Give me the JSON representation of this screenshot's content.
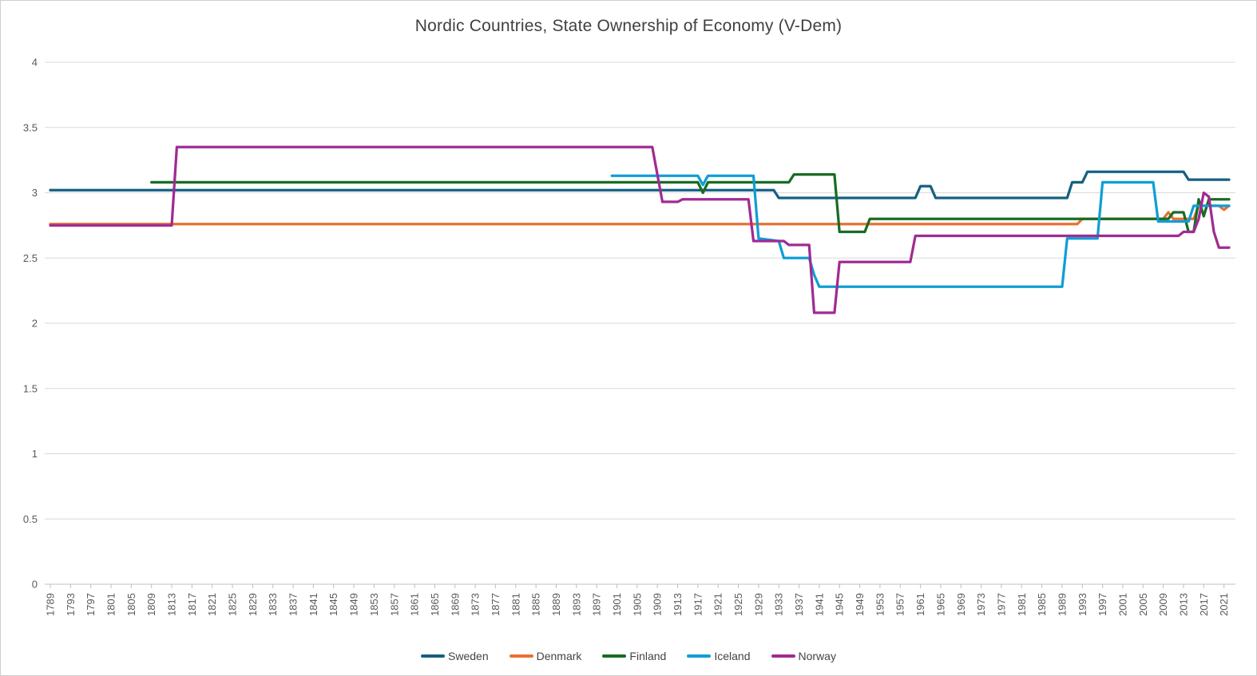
{
  "title": "Nordic Countries, State Ownership of Economy (V-Dem)",
  "chart_data": {
    "type": "line",
    "title": "Nordic Countries, State Ownership of Economy (V-Dem)",
    "xlabel": "",
    "ylabel": "",
    "grid": "horizontal",
    "legend_position": "bottom",
    "x_axis": {
      "range": [
        1789,
        2022
      ],
      "ticks": [
        1789,
        1793,
        1797,
        1801,
        1805,
        1809,
        1813,
        1817,
        1821,
        1825,
        1829,
        1833,
        1837,
        1841,
        1845,
        1849,
        1853,
        1857,
        1861,
        1865,
        1869,
        1873,
        1877,
        1881,
        1885,
        1889,
        1893,
        1897,
        1901,
        1905,
        1909,
        1913,
        1917,
        1921,
        1925,
        1929,
        1933,
        1937,
        1941,
        1945,
        1949,
        1953,
        1957,
        1961,
        1965,
        1969,
        1973,
        1977,
        1981,
        1985,
        1989,
        1993,
        1997,
        2001,
        2005,
        2009,
        2013,
        2017,
        2021
      ]
    },
    "y_axis": {
      "range": [
        0,
        4
      ],
      "ticks": [
        0,
        0.5,
        1,
        1.5,
        2,
        2.5,
        3,
        3.5,
        4
      ],
      "tick_labels": [
        "0",
        "0.5",
        "1",
        "1.5",
        "2",
        "2.5",
        "3",
        "3.5",
        "4"
      ]
    },
    "series": [
      {
        "name": "Sweden",
        "color": "#156082",
        "points": [
          [
            1789,
            3.02
          ],
          [
            1932,
            3.02
          ],
          [
            1933,
            2.96
          ],
          [
            1960,
            2.96
          ],
          [
            1961,
            3.05
          ],
          [
            1963,
            3.05
          ],
          [
            1964,
            2.96
          ],
          [
            1990,
            2.96
          ],
          [
            1991,
            3.08
          ],
          [
            1993,
            3.08
          ],
          [
            1994,
            3.16
          ],
          [
            2013,
            3.16
          ],
          [
            2014,
            3.1
          ],
          [
            2022,
            3.1
          ]
        ]
      },
      {
        "name": "Denmark",
        "color": "#E97132",
        "points": [
          [
            1789,
            2.76
          ],
          [
            1992,
            2.76
          ],
          [
            1993,
            2.8
          ],
          [
            2009,
            2.8
          ],
          [
            2010,
            2.85
          ],
          [
            2011,
            2.8
          ],
          [
            2015,
            2.8
          ],
          [
            2016,
            2.9
          ],
          [
            2020,
            2.9
          ],
          [
            2021,
            2.87
          ],
          [
            2022,
            2.9
          ]
        ]
      },
      {
        "name": "Finland",
        "color": "#196B24",
        "points": [
          [
            1809,
            3.08
          ],
          [
            1917,
            3.08
          ],
          [
            1918,
            3.0
          ],
          [
            1919,
            3.08
          ],
          [
            1935,
            3.08
          ],
          [
            1936,
            3.14
          ],
          [
            1944,
            3.14
          ],
          [
            1945,
            2.7
          ],
          [
            1950,
            2.7
          ],
          [
            1951,
            2.8
          ],
          [
            2010,
            2.8
          ],
          [
            2011,
            2.85
          ],
          [
            2013,
            2.85
          ],
          [
            2014,
            2.7
          ],
          [
            2015,
            2.7
          ],
          [
            2016,
            2.95
          ],
          [
            2017,
            2.82
          ],
          [
            2018,
            2.95
          ],
          [
            2022,
            2.95
          ]
        ]
      },
      {
        "name": "Iceland",
        "color": "#0F9ED5",
        "points": [
          [
            1900,
            3.13
          ],
          [
            1917,
            3.13
          ],
          [
            1918,
            3.06
          ],
          [
            1919,
            3.13
          ],
          [
            1928,
            3.13
          ],
          [
            1929,
            2.65
          ],
          [
            1933,
            2.63
          ],
          [
            1934,
            2.5
          ],
          [
            1939,
            2.5
          ],
          [
            1940,
            2.37
          ],
          [
            1941,
            2.28
          ],
          [
            1989,
            2.28
          ],
          [
            1990,
            2.65
          ],
          [
            1996,
            2.65
          ],
          [
            1997,
            3.08
          ],
          [
            2007,
            3.08
          ],
          [
            2008,
            2.78
          ],
          [
            2014,
            2.78
          ],
          [
            2015,
            2.9
          ],
          [
            2022,
            2.9
          ]
        ]
      },
      {
        "name": "Norway",
        "color": "#A02B93",
        "points": [
          [
            1789,
            2.75
          ],
          [
            1813,
            2.75
          ],
          [
            1814,
            3.35
          ],
          [
            1908,
            3.35
          ],
          [
            1910,
            2.93
          ],
          [
            1913,
            2.93
          ],
          [
            1914,
            2.95
          ],
          [
            1927,
            2.95
          ],
          [
            1928,
            2.63
          ],
          [
            1934,
            2.63
          ],
          [
            1935,
            2.6
          ],
          [
            1939,
            2.6
          ],
          [
            1940,
            2.08
          ],
          [
            1944,
            2.08
          ],
          [
            1945,
            2.47
          ],
          [
            1959,
            2.47
          ],
          [
            1960,
            2.67
          ],
          [
            2012,
            2.67
          ],
          [
            2013,
            2.7
          ],
          [
            2015,
            2.7
          ],
          [
            2016,
            2.8
          ],
          [
            2017,
            3.0
          ],
          [
            2018,
            2.97
          ],
          [
            2019,
            2.7
          ],
          [
            2020,
            2.58
          ],
          [
            2022,
            2.58
          ]
        ]
      }
    ],
    "style": {
      "gridline_color": "#D9D9D9",
      "axis_color": "#BFBFBF",
      "tick_label_color": "#595959",
      "title_color": "#404040",
      "line_width": 3.25
    }
  }
}
